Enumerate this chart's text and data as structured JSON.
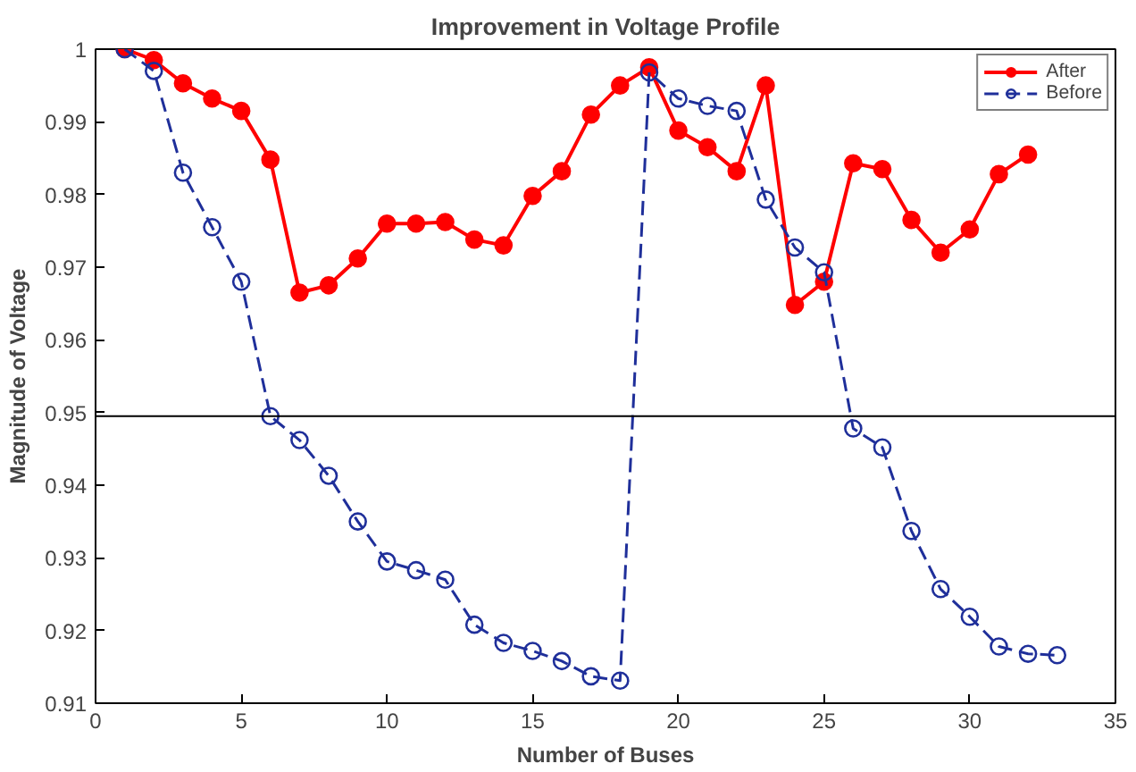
{
  "chart_data": {
    "type": "line",
    "title": "Improvement in Voltage Profile",
    "xlabel": "Number of Buses",
    "ylabel": "Magnitude of Voltage",
    "x": [
      1,
      2,
      3,
      4,
      5,
      6,
      7,
      8,
      9,
      10,
      11,
      12,
      13,
      14,
      15,
      16,
      17,
      18,
      19,
      20,
      21,
      22,
      23,
      24,
      25,
      26,
      27,
      28,
      29,
      30,
      31,
      32,
      33
    ],
    "series": [
      {
        "name": "After",
        "color": "#ff0000",
        "marker": "circle",
        "line_style": "solid",
        "values": [
          1.0,
          0.9985,
          0.9953,
          0.9932,
          0.9915,
          0.9848,
          0.9665,
          0.9675,
          0.9712,
          0.976,
          0.976,
          0.9762,
          0.9738,
          0.973,
          0.9798,
          0.9832,
          0.991,
          0.995,
          0.9975,
          0.9888,
          0.9865,
          0.9832,
          0.995,
          0.9648,
          0.968,
          0.9843,
          0.9835,
          0.9765,
          0.972,
          0.9752,
          0.9828,
          0.9855,
          null
        ]
      },
      {
        "name": "Before",
        "color": "#1f2f9a",
        "marker": "circle",
        "line_style": "dashed",
        "values": [
          1.0,
          0.997,
          0.983,
          0.9755,
          0.968,
          0.9495,
          0.9462,
          0.9413,
          0.935,
          0.9295,
          0.9283,
          0.927,
          0.9208,
          0.9183,
          0.9172,
          0.9158,
          0.9137,
          0.9131,
          0.9968,
          0.9932,
          0.9922,
          0.9915,
          0.9793,
          0.9727,
          0.9693,
          0.9478,
          0.9452,
          0.9337,
          0.9257,
          0.9219,
          0.9178,
          0.9168,
          0.9166
        ]
      }
    ],
    "ref_lines": [
      {
        "axis": "y",
        "value": 0.9495,
        "color": "#000000"
      }
    ],
    "xlim": [
      0,
      35
    ],
    "xticks": [
      0,
      5,
      10,
      15,
      20,
      25,
      30,
      35
    ],
    "ylim": [
      0.91,
      1
    ],
    "yticks": [
      0.91,
      0.92,
      0.93,
      0.94,
      0.95,
      0.96,
      0.97,
      0.98,
      0.99,
      1
    ],
    "legend": "top right",
    "grid": false
  }
}
